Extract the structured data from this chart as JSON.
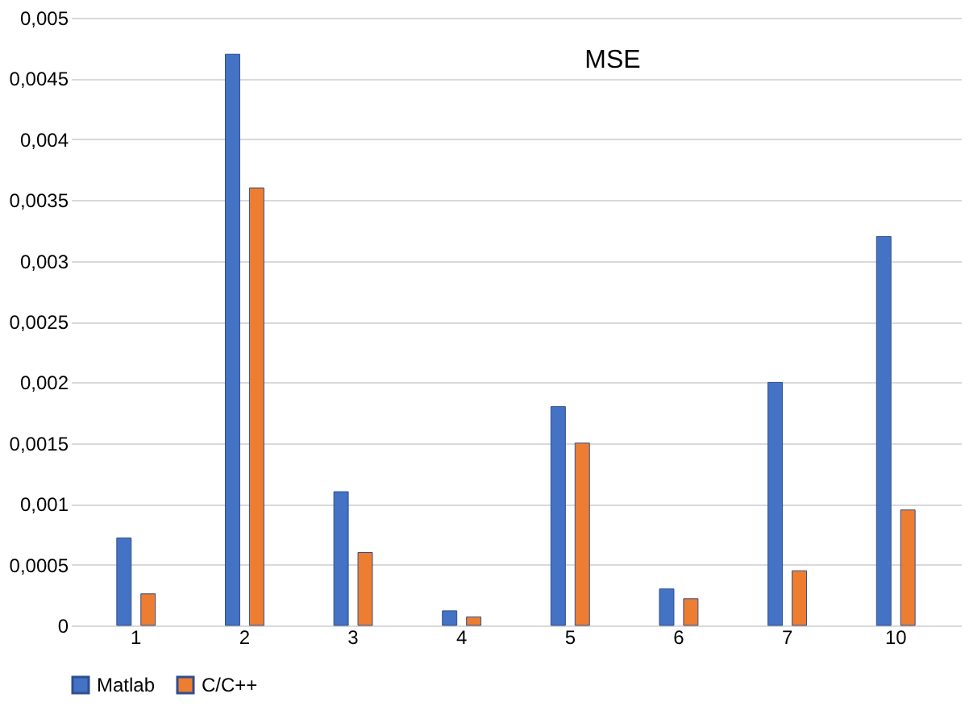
{
  "chart_data": {
    "type": "bar",
    "title": "MSE",
    "categories": [
      "1",
      "2",
      "3",
      "4",
      "5",
      "6",
      "7",
      "10"
    ],
    "series": [
      {
        "name": "Matlab",
        "color": "#4472c4",
        "values": [
          0.00072,
          0.0047,
          0.0011,
          0.00012,
          0.0018,
          0.0003,
          0.002,
          0.0032
        ]
      },
      {
        "name": "C/C++",
        "color": "#ed7d31",
        "values": [
          0.00026,
          0.0036,
          0.0006,
          7e-05,
          0.0015,
          0.00022,
          0.00045,
          0.00095
        ]
      }
    ],
    "ylim": [
      0,
      0.005
    ],
    "yticks": [
      0,
      {
        "value": 0.0005,
        "label": "0,0005"
      },
      {
        "value": 0.001,
        "label": "0,001"
      },
      {
        "value": 0.0015,
        "label": "0,0015"
      },
      {
        "value": 0.002,
        "label": "0,002"
      },
      {
        "value": 0.0025,
        "label": "0,0025"
      },
      {
        "value": 0.003,
        "label": "0,003"
      },
      {
        "value": 0.0035,
        "label": "0,0035"
      },
      {
        "value": 0.004,
        "label": "0,004"
      },
      {
        "value": 0.0045,
        "label": "0,0045"
      },
      {
        "value": 0.005,
        "label": "0,005"
      }
    ],
    "grid": "y",
    "legend": "bottom"
  }
}
